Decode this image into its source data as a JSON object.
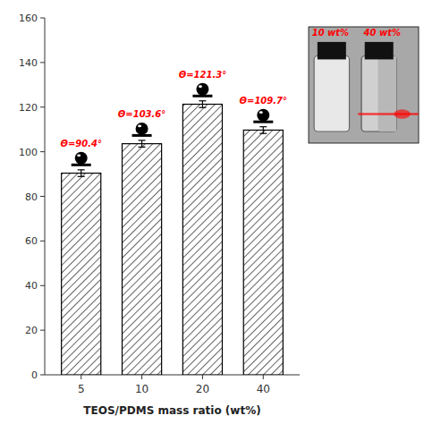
{
  "chart_data": {
    "type": "bar",
    "categories": [
      "5",
      "10",
      "20",
      "40"
    ],
    "values": [
      90.4,
      103.6,
      121.3,
      109.7
    ],
    "errors": [
      1.5,
      1.5,
      1.5,
      1.5
    ],
    "xlabel": "TEOS/PDMS mass ratio (wt%)",
    "ylim": [
      0,
      160
    ],
    "yticks": [
      0,
      20,
      40,
      60,
      80,
      100,
      120,
      140,
      160
    ],
    "color": "black",
    "grid": false,
    "annotations": [
      "Θ=90.4°",
      "Θ=103.6°",
      "Θ=121.3°",
      "Θ=109.7°",
      "10 wt%",
      "40 wt%"
    ]
  }
}
